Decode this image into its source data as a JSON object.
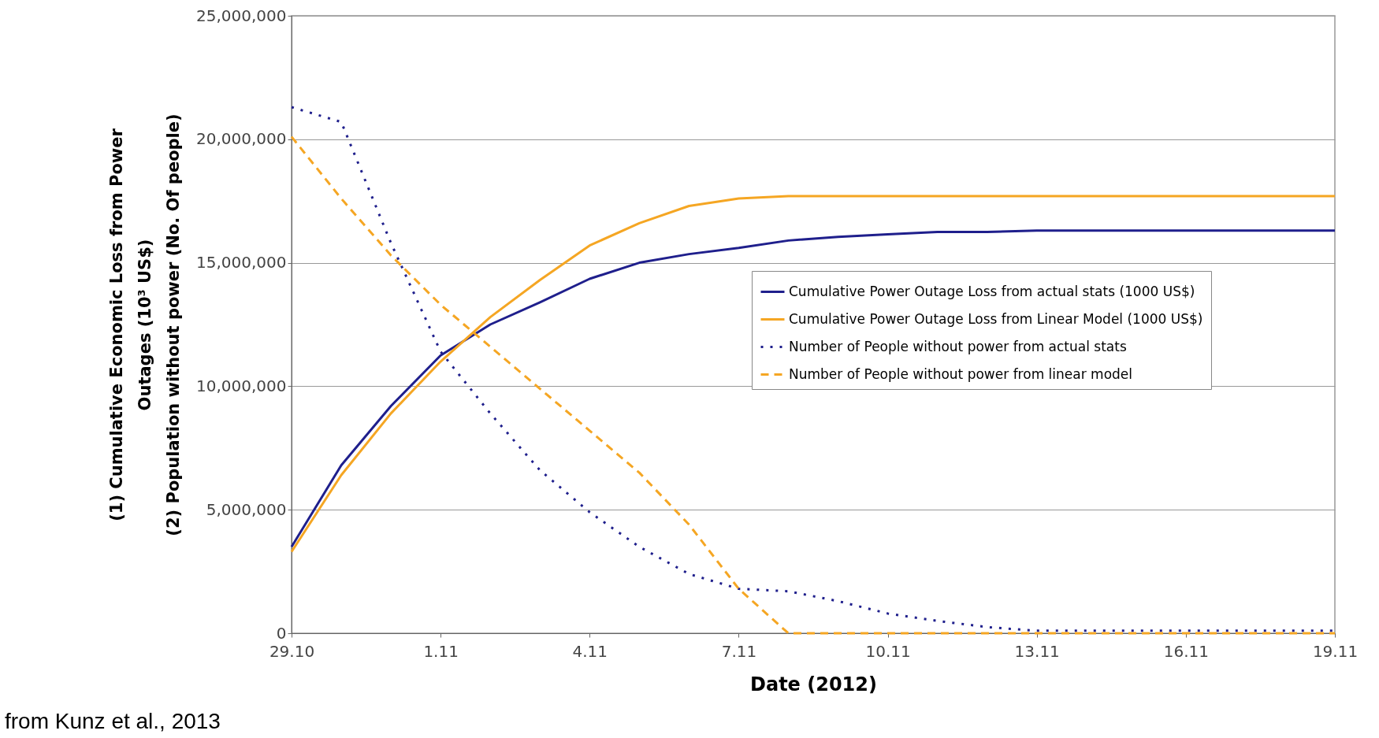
{
  "chart_data": {
    "type": "line",
    "xlabel": "Date (2012)",
    "ylabel": "(1) Cumulative Economic Loss from Power\nOutages (10³ US$)\n(2) Population without power (No. Of people)",
    "x": [
      "2012-10-29",
      "2012-10-30",
      "2012-10-31",
      "2012-11-01",
      "2012-11-02",
      "2012-11-03",
      "2012-11-04",
      "2012-11-05",
      "2012-11-06",
      "2012-11-07",
      "2012-11-08",
      "2012-11-09",
      "2012-11-10",
      "2012-11-11",
      "2012-11-12",
      "2012-11-13",
      "2012-11-14",
      "2012-11-15",
      "2012-11-16",
      "2012-11-17",
      "2012-11-18",
      "2012-11-19"
    ],
    "series": [
      {
        "name": "Cumulative Power Outage Loss from actual stats (1000 US$)",
        "color": "#1f1f8c",
        "line_style": "solid",
        "values": [
          3500000,
          6800000,
          9200000,
          11250000,
          12500000,
          13400000,
          14350000,
          15000000,
          15350000,
          15600000,
          15900000,
          16050000,
          16150000,
          16250000,
          16250000,
          16300000,
          16300000,
          16300000,
          16300000,
          16300000,
          16300000,
          16300000
        ]
      },
      {
        "name": "Cumulative Power Outage Loss from Linear Model (1000 US$)",
        "color": "#f5a623",
        "line_style": "solid",
        "values": [
          3300000,
          6400000,
          8900000,
          11000000,
          12800000,
          14300000,
          15700000,
          16600000,
          17300000,
          17600000,
          17700000,
          17700000,
          17700000,
          17700000,
          17700000,
          17700000,
          17700000,
          17700000,
          17700000,
          17700000,
          17700000,
          17700000
        ]
      },
      {
        "name": "Number of People without power from actual stats",
        "color": "#1f1f8c",
        "line_style": "dotted",
        "values": [
          21300000,
          20700000,
          15800000,
          11400000,
          8900000,
          6600000,
          4900000,
          3500000,
          2400000,
          1800000,
          1700000,
          1300000,
          800000,
          500000,
          250000,
          100000,
          100000,
          100000,
          100000,
          100000,
          100000,
          100000
        ]
      },
      {
        "name": "Number of People without power from linear model",
        "color": "#f5a623",
        "line_style": "dashed",
        "values": [
          20100000,
          17600000,
          15300000,
          13300000,
          11600000,
          9900000,
          8200000,
          6500000,
          4400000,
          1800000,
          0,
          0,
          0,
          0,
          0,
          0,
          0,
          0,
          0,
          0,
          0,
          0
        ]
      }
    ],
    "xlim": [
      "2012-10-29",
      "2012-11-19"
    ],
    "xticks": [
      {
        "value": "2012-10-29",
        "label": "29.10"
      },
      {
        "value": "2012-11-01",
        "label": "1.11"
      },
      {
        "value": "2012-11-04",
        "label": "4.11"
      },
      {
        "value": "2012-11-07",
        "label": "7.11"
      },
      {
        "value": "2012-11-10",
        "label": "10.11"
      },
      {
        "value": "2012-11-13",
        "label": "13.11"
      },
      {
        "value": "2012-11-16",
        "label": "16.11"
      },
      {
        "value": "2012-11-19",
        "label": "19.11"
      }
    ],
    "ylim": [
      0,
      25000000
    ],
    "yticks": [
      {
        "value": 0,
        "label": "0"
      },
      {
        "value": 5000000,
        "label": "5,000,000"
      },
      {
        "value": 10000000,
        "label": "10,000,000"
      },
      {
        "value": 15000000,
        "label": "15,000,000"
      },
      {
        "value": 20000000,
        "label": "20,000,000"
      },
      {
        "value": 25000000,
        "label": "25,000,000"
      }
    ],
    "grid": "y",
    "legend": "bottom right",
    "annotations": [
      "from Kunz et al., 2013"
    ]
  }
}
